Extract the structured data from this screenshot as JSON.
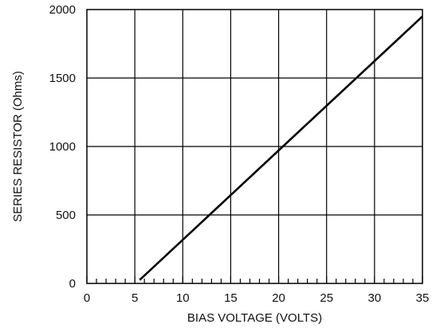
{
  "chart_data": {
    "type": "line",
    "title": "",
    "xlabel": "BIAS VOLTAGE (VOLTS)",
    "ylabel": "SERIES RESISTOR (Ohms)",
    "xlim": [
      0,
      35
    ],
    "ylim": [
      0,
      2000
    ],
    "x_ticks": [
      0,
      5,
      10,
      15,
      20,
      25,
      30,
      35
    ],
    "y_ticks": [
      0,
      500,
      1000,
      1500,
      2000
    ],
    "x_minor_step": 1,
    "grid": true,
    "legend": "none",
    "series": [
      {
        "x": [
          5.5,
          35
        ],
        "y": [
          25,
          1950
        ],
        "color": "#000000"
      }
    ]
  }
}
